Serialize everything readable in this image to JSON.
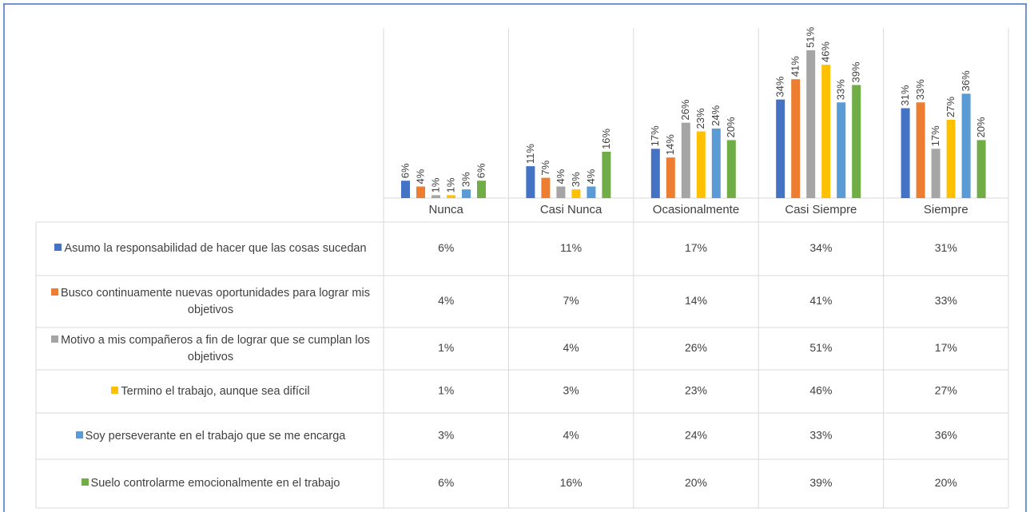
{
  "chart_data": {
    "type": "bar",
    "categories": [
      "Nunca",
      "Casi Nunca",
      "Ocasionalmente",
      "Casi Siempre",
      "Siempre"
    ],
    "series": [
      {
        "name": "Asumo la responsabilidad de hacer que las cosas sucedan",
        "color": "#4472c4",
        "values": [
          6,
          11,
          17,
          34,
          31
        ],
        "value_labels": [
          "6%",
          "11%",
          "17%",
          "34%",
          "31%"
        ]
      },
      {
        "name": "Busco continuamente nuevas oportunidades para lograr mis objetivos",
        "color": "#ed7d31",
        "values": [
          4,
          7,
          14,
          41,
          33
        ],
        "value_labels": [
          "4%",
          "7%",
          "14%",
          "41%",
          "33%"
        ]
      },
      {
        "name": "Motivo a mis compañeros a fin de lograr que se cumplan los objetivos",
        "color": "#a5a5a5",
        "values": [
          1,
          4,
          26,
          51,
          17
        ],
        "value_labels": [
          "1%",
          "4%",
          "26%",
          "51%",
          "17%"
        ]
      },
      {
        "name": "Termino el trabajo, aunque sea difícil",
        "color": "#ffc000",
        "values": [
          1,
          3,
          23,
          46,
          27
        ],
        "value_labels": [
          "1%",
          "3%",
          "23%",
          "46%",
          "27%"
        ]
      },
      {
        "name": "Soy perseverante en el trabajo que se me encarga",
        "color": "#5b9bd5",
        "values": [
          3,
          4,
          24,
          33,
          36
        ],
        "value_labels": [
          "3%",
          "4%",
          "24%",
          "33%",
          "36%"
        ]
      },
      {
        "name": "Suelo controlarme emocionalmente en el trabajo",
        "color": "#70ad47",
        "values": [
          6,
          16,
          20,
          39,
          20
        ],
        "value_labels": [
          "6%",
          "16%",
          "20%",
          "39%",
          "20%"
        ]
      }
    ]
  }
}
